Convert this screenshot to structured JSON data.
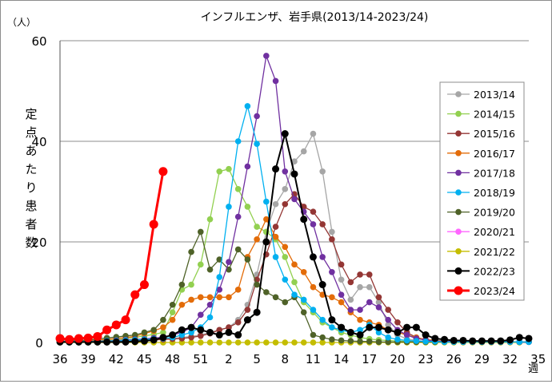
{
  "chart_data": {
    "type": "line",
    "title": "インフルエンザ、岩手県(2013/14-2023/24)",
    "ylabel": "定点あたり患者数",
    "yunit": "（人）",
    "xunit": "週",
    "ylim": [
      0,
      60
    ],
    "yticks": [
      0,
      20,
      40,
      60
    ],
    "xtick_labels": [
      "36",
      "39",
      "42",
      "45",
      "48",
      "51",
      "2",
      "5",
      "8",
      "11",
      "14",
      "17",
      "20",
      "23",
      "26",
      "29",
      "32",
      "35"
    ],
    "legend_position": "right",
    "grid": "horizontal",
    "series": [
      {
        "name": "2013/14",
        "color": "#a6a6a6",
        "values": [
          0.2,
          0.2,
          0.2,
          0.2,
          0.2,
          0.2,
          0.3,
          0.3,
          0.4,
          0.5,
          0.6,
          0.7,
          0.8,
          1.0,
          1.2,
          1.5,
          2.0,
          2.5,
          3.0,
          4.5,
          7.5,
          13.5,
          22.0,
          27.5,
          30.5,
          36.0,
          38.0,
          41.5,
          34.0,
          22.0,
          12.5,
          8.5,
          11.0,
          11.0,
          8.0,
          3.5,
          1.5,
          0.7,
          0.4,
          0.2,
          0.2,
          0.1,
          0.1,
          0.1,
          0.1,
          0.1,
          0.1,
          0.1,
          0.1,
          0.1,
          0.1
        ]
      },
      {
        "name": "2014/15",
        "color": "#92d050",
        "values": [
          0.2,
          0.2,
          0.2,
          0.2,
          0.3,
          0.4,
          0.5,
          0.8,
          1.0,
          1.3,
          1.6,
          2.0,
          6.0,
          10.5,
          11.5,
          15.5,
          24.5,
          34.0,
          34.5,
          30.5,
          27.0,
          23.0,
          22.0,
          20.5,
          17.0,
          12.0,
          8.0,
          6.0,
          4.0,
          3.0,
          2.0,
          1.5,
          1.0,
          0.7,
          0.5,
          0.4,
          0.3,
          0.2,
          0.2,
          0.1,
          0.1,
          0.1,
          0.1,
          0.1,
          0.1,
          0.1,
          0.1,
          0.1,
          0.1,
          0.1,
          0.1
        ]
      },
      {
        "name": "2015/16",
        "color": "#943634",
        "values": [
          0.2,
          0.2,
          0.2,
          0.2,
          0.2,
          0.2,
          0.2,
          0.3,
          0.3,
          0.4,
          0.5,
          0.6,
          0.7,
          0.8,
          1.0,
          1.3,
          1.8,
          2.5,
          3.0,
          4.0,
          6.5,
          12.5,
          17.5,
          23.0,
          27.5,
          29.5,
          27.0,
          26.0,
          23.5,
          20.5,
          15.5,
          12.0,
          13.5,
          13.5,
          9.0,
          6.5,
          4.0,
          2.0,
          1.0,
          0.5,
          0.3,
          0.2,
          0.1,
          0.1,
          0.1,
          0.1,
          0.1,
          0.1,
          0.1,
          0.1,
          0.1
        ]
      },
      {
        "name": "2016/17",
        "color": "#e36c09",
        "values": [
          0.3,
          0.3,
          0.3,
          0.4,
          0.5,
          0.6,
          0.8,
          1.0,
          1.2,
          1.8,
          2.3,
          3.0,
          4.5,
          7.5,
          8.5,
          9.0,
          9.0,
          9.0,
          9.0,
          10.5,
          17.0,
          20.5,
          24.5,
          21.0,
          19.0,
          15.5,
          14.0,
          11.0,
          9.5,
          9.0,
          8.0,
          6.0,
          4.5,
          4.0,
          3.5,
          2.5,
          2.0,
          1.5,
          1.0,
          0.6,
          0.4,
          0.3,
          0.2,
          0.2,
          0.2,
          0.1,
          0.1,
          0.1,
          0.1,
          0.1,
          0.1
        ]
      },
      {
        "name": "2017/18",
        "color": "#7030a0",
        "values": [
          0.2,
          0.2,
          0.2,
          0.2,
          0.3,
          0.3,
          0.4,
          0.5,
          0.6,
          0.7,
          0.9,
          1.0,
          1.5,
          2.0,
          3.0,
          5.5,
          7.5,
          10.5,
          16.0,
          25.0,
          35.0,
          45.0,
          57.0,
          52.0,
          34.0,
          28.5,
          26.0,
          23.5,
          17.0,
          14.0,
          9.5,
          6.5,
          6.5,
          8.0,
          7.0,
          4.5,
          2.5,
          1.5,
          0.8,
          0.5,
          0.3,
          0.2,
          0.2,
          0.1,
          0.1,
          0.1,
          0.1,
          0.1,
          0.1,
          0.1,
          0.1
        ]
      },
      {
        "name": "2018/19",
        "color": "#00b0f0",
        "values": [
          0.2,
          0.2,
          0.2,
          0.2,
          0.2,
          0.3,
          0.3,
          0.4,
          0.5,
          0.6,
          0.7,
          0.8,
          1.0,
          1.5,
          2.0,
          3.0,
          5.0,
          13.0,
          27.0,
          40.0,
          47.0,
          39.5,
          28.0,
          17.0,
          12.5,
          9.5,
          8.5,
          6.5,
          4.5,
          3.0,
          2.5,
          2.0,
          2.5,
          3.5,
          2.0,
          1.0,
          0.6,
          0.4,
          0.3,
          0.2,
          0.2,
          0.1,
          0.1,
          0.1,
          0.1,
          0.1,
          0.1,
          0.1,
          0.1,
          0.1,
          0.1
        ]
      },
      {
        "name": "2019/20",
        "color": "#4f6228",
        "values": [
          0.2,
          0.3,
          0.4,
          0.5,
          0.7,
          0.9,
          1.1,
          1.3,
          1.5,
          2.0,
          2.5,
          4.5,
          7.5,
          11.5,
          18.0,
          22.0,
          14.5,
          16.5,
          14.5,
          18.5,
          16.5,
          11.5,
          10.0,
          9.0,
          8.0,
          9.0,
          6.0,
          1.5,
          1.0,
          0.6,
          0.4,
          0.3,
          0.2,
          0.2,
          0.1,
          0.1,
          0.1,
          0.1,
          0.1,
          0.1,
          0.1,
          0.1,
          0.1,
          0.1,
          0.1,
          0.1,
          0.1,
          0.1,
          0.1,
          0.1,
          0.1
        ]
      },
      {
        "name": "2020/21",
        "color": "#ff66ff",
        "values": [
          0,
          0,
          0,
          0,
          0,
          0,
          0,
          0,
          0,
          0,
          0,
          0,
          0,
          0,
          0,
          0,
          0,
          0,
          0,
          0,
          0,
          0,
          0,
          0,
          0,
          0,
          0,
          0,
          0,
          0,
          0,
          0,
          0,
          0,
          0,
          0,
          0,
          0,
          0,
          0,
          0,
          0,
          0,
          0,
          0,
          0,
          0,
          0,
          0,
          0,
          0.1
        ]
      },
      {
        "name": "2021/22",
        "color": "#c4bd00",
        "values": [
          0,
          0,
          0,
          0,
          0,
          0,
          0,
          0,
          0,
          0,
          0,
          0,
          0,
          0,
          0,
          0,
          0,
          0,
          0,
          0,
          0,
          0,
          0,
          0,
          0,
          0,
          0,
          0,
          0,
          0,
          0,
          0,
          0,
          0,
          0,
          0,
          0,
          0,
          0,
          0,
          0,
          0,
          0,
          0,
          0,
          0,
          0,
          0,
          0,
          0
        ]
      },
      {
        "name": "2022/23",
        "color": "#000000",
        "values": [
          0.1,
          0.1,
          0.1,
          0.1,
          0.1,
          0.1,
          0.1,
          0.1,
          0.2,
          0.3,
          0.5,
          1.0,
          1.5,
          2.5,
          3.0,
          2.5,
          2.0,
          1.5,
          2.0,
          1.5,
          4.5,
          6.0,
          20.0,
          34.5,
          41.5,
          33.5,
          24.5,
          17.0,
          11.5,
          4.5,
          3.0,
          2.0,
          1.5,
          3.0,
          3.0,
          2.5,
          2.0,
          3.0,
          3.0,
          1.5,
          0.8,
          0.6,
          0.4,
          0.4,
          0.3,
          0.3,
          0.3,
          0.3,
          0.5,
          1.0,
          0.8
        ]
      },
      {
        "name": "2023/24",
        "color": "#ff0000",
        "values": [
          0.8,
          0.6,
          0.8,
          0.9,
          1.2,
          2.5,
          3.5,
          4.5,
          9.5,
          11.5,
          23.5,
          34.0
        ]
      }
    ]
  }
}
